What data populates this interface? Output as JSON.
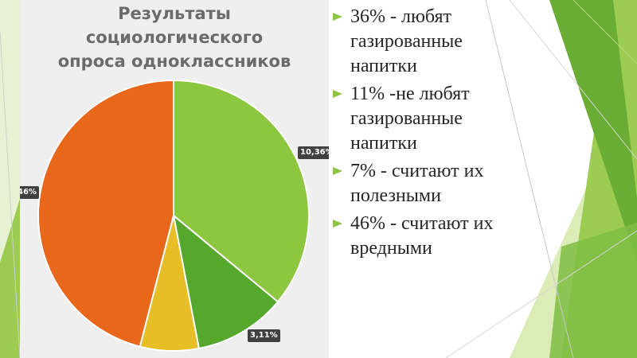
{
  "chart_data": {
    "type": "pie",
    "title_lines": [
      "Результаты",
      "социологического",
      "опроса одноклассников"
    ],
    "slices": [
      {
        "value": 36,
        "color": "#8dc63f"
      },
      {
        "value": 11,
        "color": "#56a82d"
      },
      {
        "value": 7,
        "color": "#e8be26"
      },
      {
        "value": 46,
        "color": "#e8671b"
      }
    ],
    "data_labels": [
      "10,36%",
      "3,11%",
      "46%"
    ]
  },
  "bullets": [
    {
      "text": "36% - любят газированные напитки"
    },
    {
      "text": "11% -не любят газированные напитки"
    },
    {
      "text": "7% - считают их полезными"
    },
    {
      "text": "46% - считают их вредными"
    }
  ],
  "colors": {
    "accent_green": "#8cc63f",
    "band_light": "#d4e8a6",
    "band_mid": "#9ccd52",
    "band_dark": "#6fb33b"
  }
}
